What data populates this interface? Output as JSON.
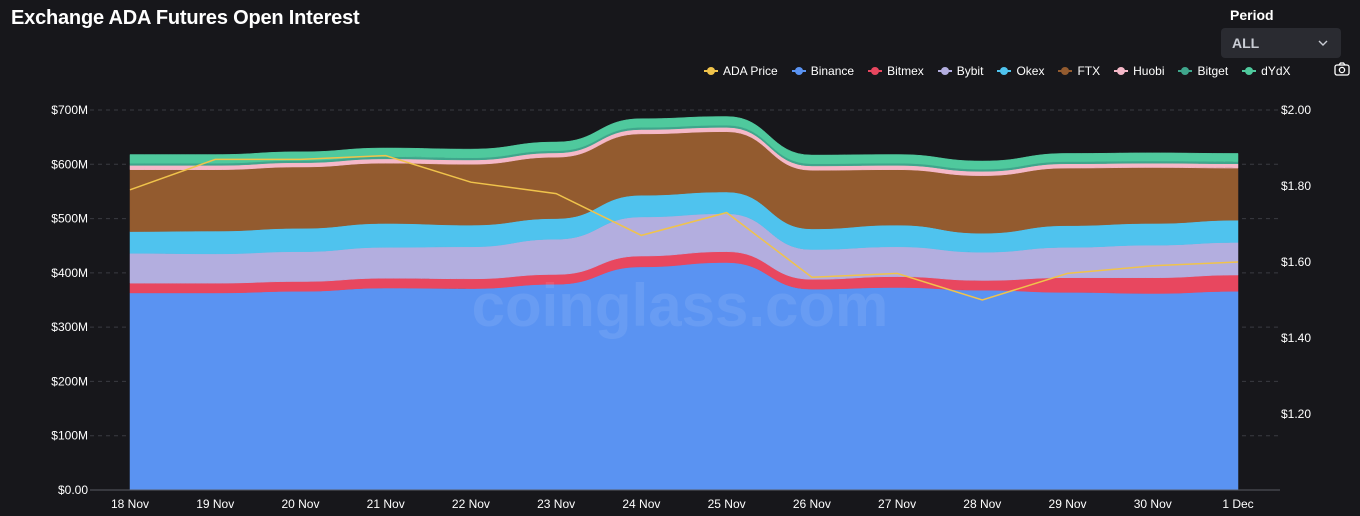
{
  "header": {
    "title": "Exchange ADA Futures Open Interest",
    "period_label": "Period",
    "period_value": "ALL"
  },
  "icons": {
    "dropdown": "chevron-down-icon",
    "screenshot": "camera-icon"
  },
  "legend": [
    {
      "label": "ADA Price",
      "color": "#f0c34b"
    },
    {
      "label": "Binance",
      "color": "#5a93f2"
    },
    {
      "label": "Bitmex",
      "color": "#e8475f"
    },
    {
      "label": "Bybit",
      "color": "#b3aedf"
    },
    {
      "label": "Okex",
      "color": "#4fc3ee"
    },
    {
      "label": "FTX",
      "color": "#935b2f"
    },
    {
      "label": "Huobi",
      "color": "#f5b8c8"
    },
    {
      "label": "Bitget",
      "color": "#3fa68c"
    },
    {
      "label": "dYdX",
      "color": "#4fc99d"
    }
  ],
  "watermark": "coinglass.com",
  "chart_data": {
    "type": "area",
    "x": [
      "18 Nov",
      "19 Nov",
      "20 Nov",
      "21 Nov",
      "22 Nov",
      "23 Nov",
      "24 Nov",
      "25 Nov",
      "26 Nov",
      "27 Nov",
      "28 Nov",
      "29 Nov",
      "30 Nov",
      "1 Dec"
    ],
    "stacked": true,
    "y_left": {
      "ticks": [
        "$0.00",
        "$100M",
        "$200M",
        "$300M",
        "$400M",
        "$500M",
        "$600M",
        "$700M"
      ],
      "range": [
        0,
        700000000
      ]
    },
    "y_right": {
      "ticks": [
        "$1.20",
        "$1.40",
        "$1.60",
        "$1.80",
        "$2.00"
      ],
      "range": [
        1.0,
        2.0
      ]
    },
    "series": [
      {
        "name": "Binance",
        "color": "#5a93f2",
        "values": [
          363000000,
          363000000,
          366000000,
          372000000,
          371000000,
          379000000,
          411000000,
          419000000,
          370000000,
          373000000,
          368000000,
          364000000,
          362000000,
          366000000
        ]
      },
      {
        "name": "Bitmex",
        "color": "#e8475f",
        "values": [
          18000000,
          18000000,
          18000000,
          18000000,
          18000000,
          18000000,
          20000000,
          20000000,
          18000000,
          20000000,
          18000000,
          27000000,
          29000000,
          30000000
        ]
      },
      {
        "name": "Bybit",
        "color": "#b3aedf",
        "values": [
          55000000,
          54000000,
          55000000,
          57000000,
          59000000,
          65000000,
          72000000,
          70000000,
          55000000,
          55000000,
          52000000,
          56000000,
          60000000,
          60000000
        ]
      },
      {
        "name": "Okex",
        "color": "#4fc3ee",
        "values": [
          40000000,
          42000000,
          43000000,
          44000000,
          40000000,
          38000000,
          40000000,
          40000000,
          38000000,
          40000000,
          35000000,
          40000000,
          40000000,
          41000000
        ]
      },
      {
        "name": "FTX",
        "color": "#935b2f",
        "values": [
          114000000,
          113000000,
          113000000,
          111000000,
          112000000,
          113000000,
          113000000,
          111000000,
          108000000,
          102000000,
          106000000,
          106000000,
          103000000,
          96000000
        ]
      },
      {
        "name": "Huobi",
        "color": "#f5b8c8",
        "values": [
          8000000,
          8000000,
          8000000,
          8000000,
          8000000,
          8000000,
          8000000,
          8000000,
          8000000,
          8000000,
          8000000,
          8000000,
          8000000,
          8000000
        ]
      },
      {
        "name": "Bitget",
        "color": "#3fa68c",
        "values": [
          4000000,
          4000000,
          4000000,
          4000000,
          4000000,
          4000000,
          4000000,
          4000000,
          4000000,
          4000000,
          4000000,
          4000000,
          4000000,
          4000000
        ]
      },
      {
        "name": "dYdX",
        "color": "#4fc99d",
        "values": [
          16000000,
          16000000,
          16000000,
          16000000,
          16000000,
          16000000,
          16000000,
          16000000,
          16000000,
          16000000,
          15000000,
          15000000,
          15000000,
          15000000
        ]
      }
    ],
    "line_series": {
      "name": "ADA Price",
      "color": "#f0c34b",
      "axis": "right",
      "values": [
        1.79,
        1.87,
        1.87,
        1.88,
        1.81,
        1.78,
        1.67,
        1.73,
        1.56,
        1.57,
        1.5,
        1.57,
        1.59,
        1.6
      ]
    },
    "grid": true,
    "legend_position": "top-right"
  }
}
